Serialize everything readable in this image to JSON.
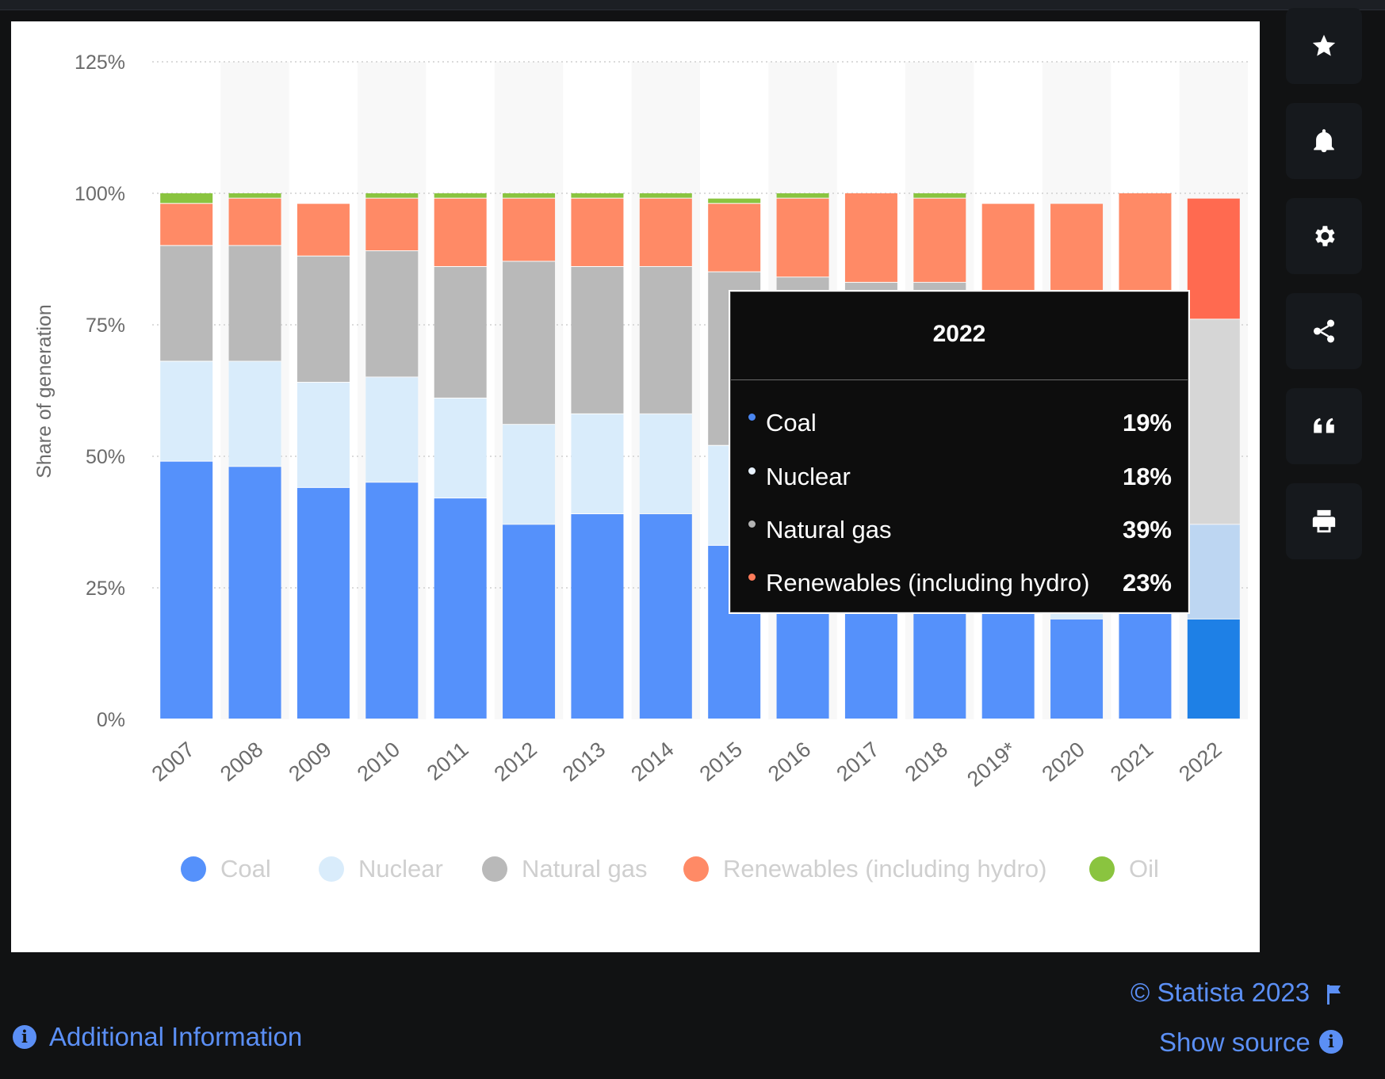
{
  "chart_data": {
    "type": "bar",
    "stacked": true,
    "categories": [
      "2007",
      "2008",
      "2009",
      "2010",
      "2011",
      "2012",
      "2013",
      "2014",
      "2015",
      "2016",
      "2017",
      "2018",
      "2019*",
      "2020",
      "2021",
      "2022"
    ],
    "series": [
      {
        "name": "Coal",
        "color": "#5591fb",
        "values": [
          49,
          48,
          44,
          45,
          42,
          37,
          39,
          39,
          33,
          35,
          36,
          35,
          30,
          19,
          25,
          19
        ]
      },
      {
        "name": "Nuclear",
        "color": "#d9ecfb",
        "values": [
          19,
          20,
          20,
          20,
          19,
          19,
          19,
          19,
          19,
          19,
          19,
          19,
          19,
          19,
          19,
          18
        ]
      },
      {
        "name": "Natural gas",
        "color": "#b9b9b9",
        "values": [
          22,
          22,
          24,
          24,
          25,
          31,
          28,
          28,
          33,
          30,
          28,
          29,
          30,
          33,
          30,
          39
        ]
      },
      {
        "name": "Renewables (including hydro)",
        "color": "#ff8a66",
        "values": [
          8,
          9,
          10,
          10,
          13,
          12,
          13,
          13,
          13,
          15,
          17,
          16,
          19,
          27,
          26,
          23
        ]
      },
      {
        "name": "Oil",
        "color": "#8ac43f",
        "values": [
          2,
          1,
          0,
          1,
          1,
          1,
          1,
          1,
          1,
          1,
          0,
          1,
          0,
          0,
          0,
          0
        ]
      }
    ],
    "ylim": [
      0,
      125
    ],
    "yticks": [
      0,
      25,
      50,
      75,
      100,
      125
    ],
    "ytick_labels": [
      "0%",
      "25%",
      "50%",
      "75%",
      "100%",
      "125%"
    ],
    "ylabel": "Share of generation",
    "xlabel": "",
    "title": "",
    "grid": true,
    "legend_position": "bottom",
    "highlighted_category": "2022",
    "highlight_colors": {
      "Coal": "#1e80e6",
      "Nuclear": "#bdd6f2",
      "Natural gas": "#d6d6d6",
      "Renewables (including hydro)": "#ff6a50"
    }
  },
  "tooltip": {
    "title": "2022",
    "rows": [
      {
        "name": "Coal",
        "value": "19%",
        "color": "#4a86f0"
      },
      {
        "name": "Nuclear",
        "value": "18%",
        "color": "#e8f2fd"
      },
      {
        "name": "Natural gas",
        "value": "39%",
        "color": "#b3b3b3"
      },
      {
        "name": "Renewables (including hydro)",
        "value": "23%",
        "color": "#ff7b5a"
      }
    ]
  },
  "sidebar": {
    "buttons": [
      {
        "icon": "star-icon"
      },
      {
        "icon": "bell-icon"
      },
      {
        "icon": "gear-icon"
      },
      {
        "icon": "share-icon"
      },
      {
        "icon": "quote-icon"
      },
      {
        "icon": "print-icon"
      }
    ]
  },
  "footer": {
    "copyright": "© Statista 2023",
    "show_source": "Show source",
    "additional_info": "Additional Information",
    "link_color": "#5b8ff5"
  }
}
